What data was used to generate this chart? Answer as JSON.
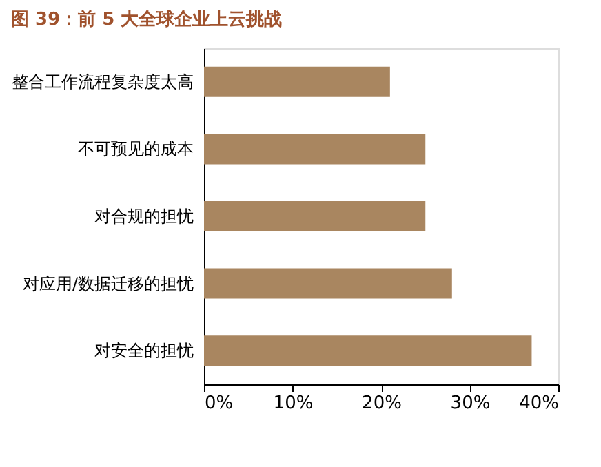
{
  "chart_data": {
    "type": "bar",
    "orientation": "horizontal",
    "title": "图 39：前 5 大全球企业上云挑战",
    "categories": [
      "整合工作流程复杂度太高",
      "不可预见的成本",
      "对合规的担忧",
      "对应用/数据迁移的担忧",
      "对安全的担忧"
    ],
    "values": [
      21,
      25,
      25,
      28,
      37
    ],
    "color": "#a98660",
    "xlim": [
      0,
      40
    ],
    "xticks": [
      {
        "value": 0,
        "label": "0%"
      },
      {
        "value": 10,
        "label": "10%"
      },
      {
        "value": 20,
        "label": "20%"
      },
      {
        "value": 30,
        "label": "30%"
      },
      {
        "value": 40,
        "label": "40%"
      }
    ],
    "grid": false
  }
}
